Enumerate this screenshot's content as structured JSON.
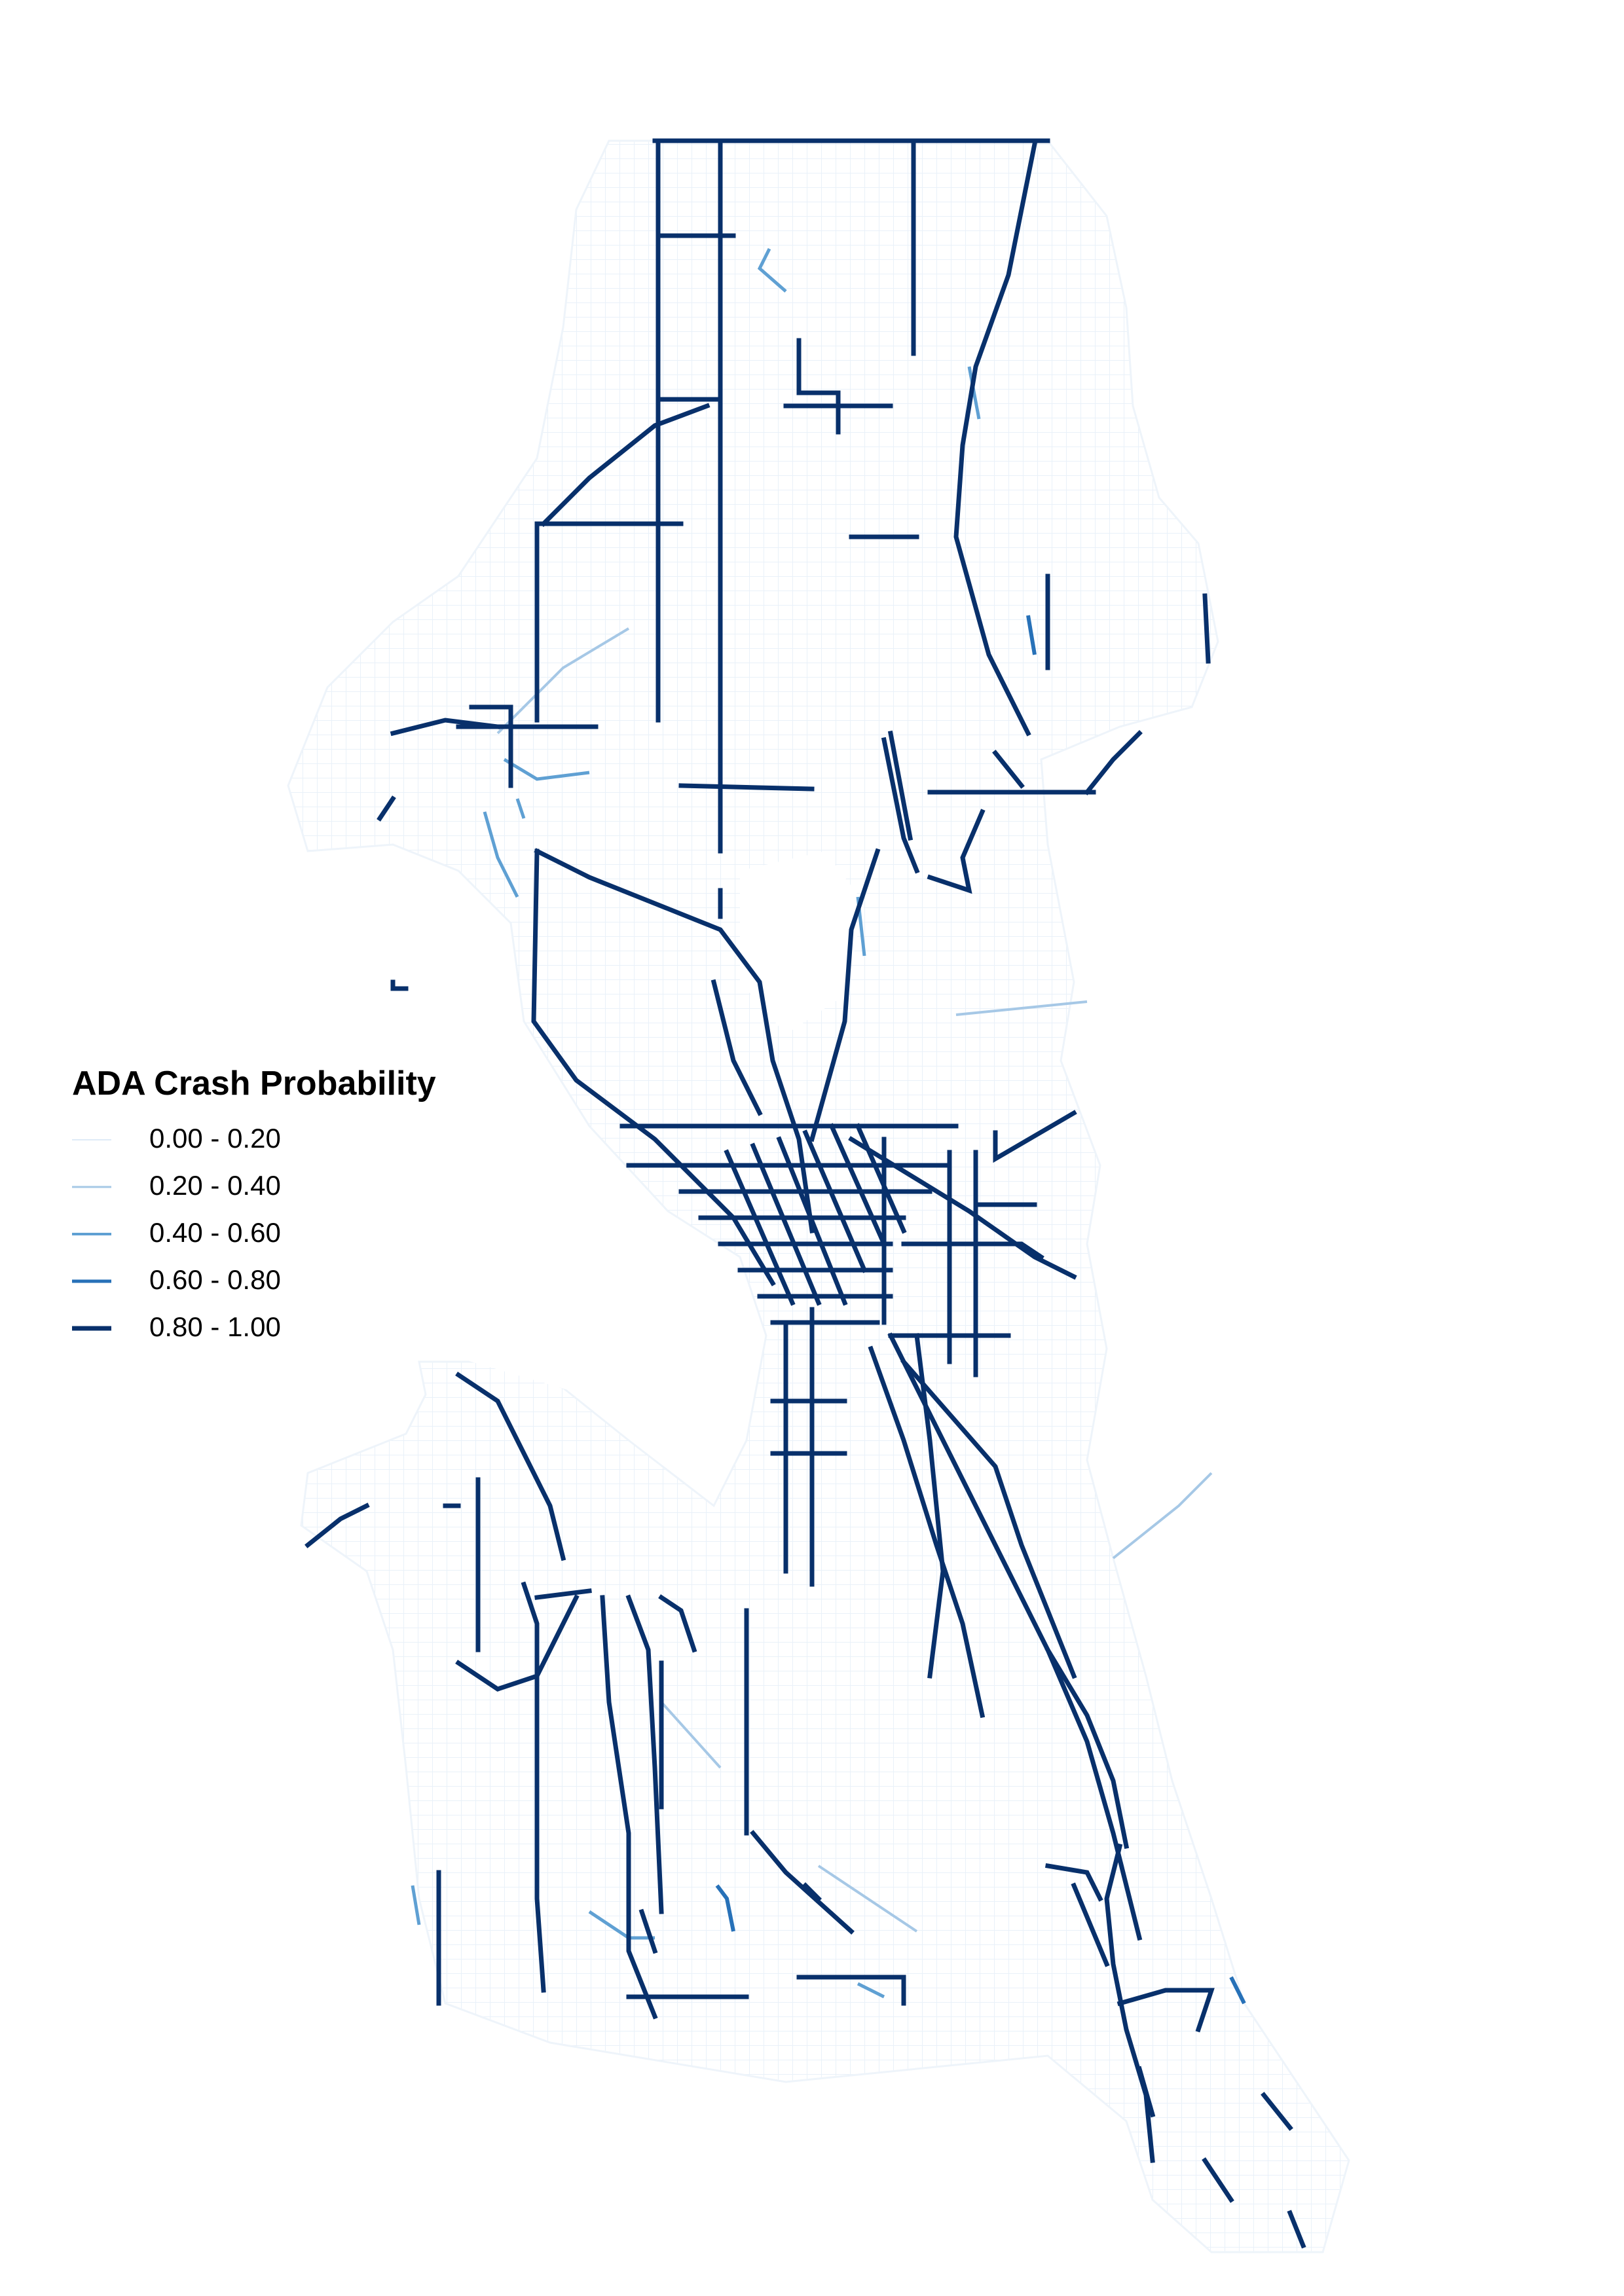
{
  "legend": {
    "title": "ADA Crash Probability",
    "classes": [
      {
        "label": "0.00 - 0.20",
        "color": "#deebf7"
      },
      {
        "label": "0.20 - 0.40",
        "color": "#a6c8e6"
      },
      {
        "label": "0.40 - 0.60",
        "color": "#5fa0d3"
      },
      {
        "label": "0.60 - 0.80",
        "color": "#2771b8"
      },
      {
        "label": "0.80 - 1.00",
        "color": "#08306b"
      }
    ]
  },
  "colors": {
    "background": "#ffffff",
    "street_network": "#e9f1f9"
  }
}
